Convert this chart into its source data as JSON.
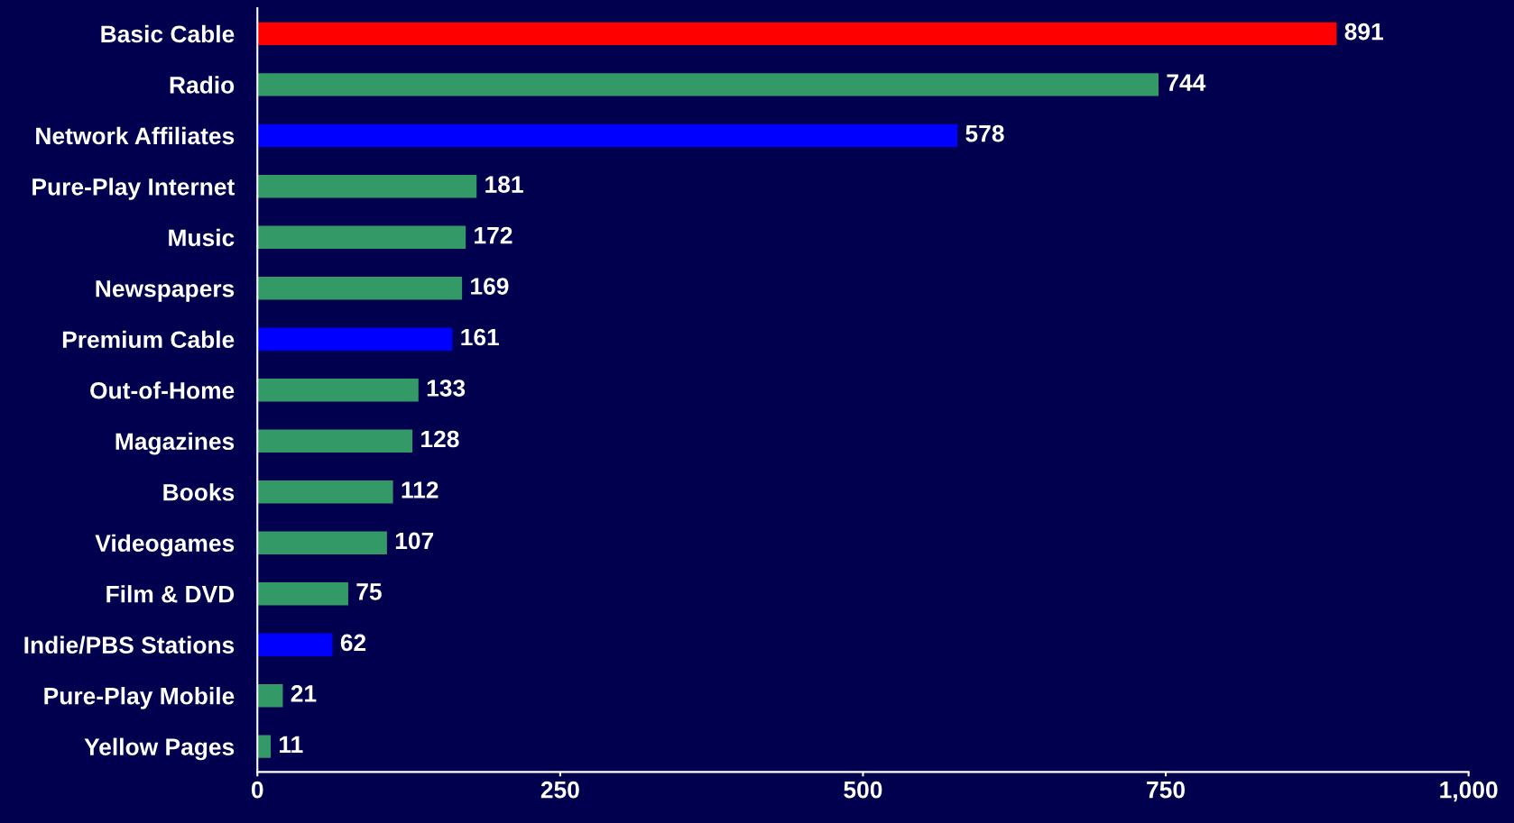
{
  "chart_data": {
    "type": "bar",
    "orientation": "horizontal",
    "categories": [
      "Basic Cable",
      "Radio",
      "Network Affiliates",
      "Pure-Play Internet",
      "Music",
      "Newspapers",
      "Premium Cable",
      "Out-of-Home",
      "Magazines",
      "Books",
      "Videogames",
      "Film & DVD",
      "Indie/PBS Stations",
      "Pure-Play Mobile",
      "Yellow Pages"
    ],
    "values": [
      891,
      744,
      578,
      181,
      172,
      169,
      161,
      133,
      128,
      112,
      107,
      75,
      62,
      21,
      11
    ],
    "colors": [
      "#ff0000",
      "#339966",
      "#0000ff",
      "#339966",
      "#339966",
      "#339966",
      "#0000ff",
      "#339966",
      "#339966",
      "#339966",
      "#339966",
      "#339966",
      "#0000ff",
      "#339966",
      "#339966"
    ],
    "xlim": [
      0,
      1000
    ],
    "xticks": [
      0,
      250,
      500,
      750,
      {
        "value": 1000,
        "label": "1,000"
      }
    ],
    "data_labels": true,
    "grid": false,
    "legend": false
  }
}
